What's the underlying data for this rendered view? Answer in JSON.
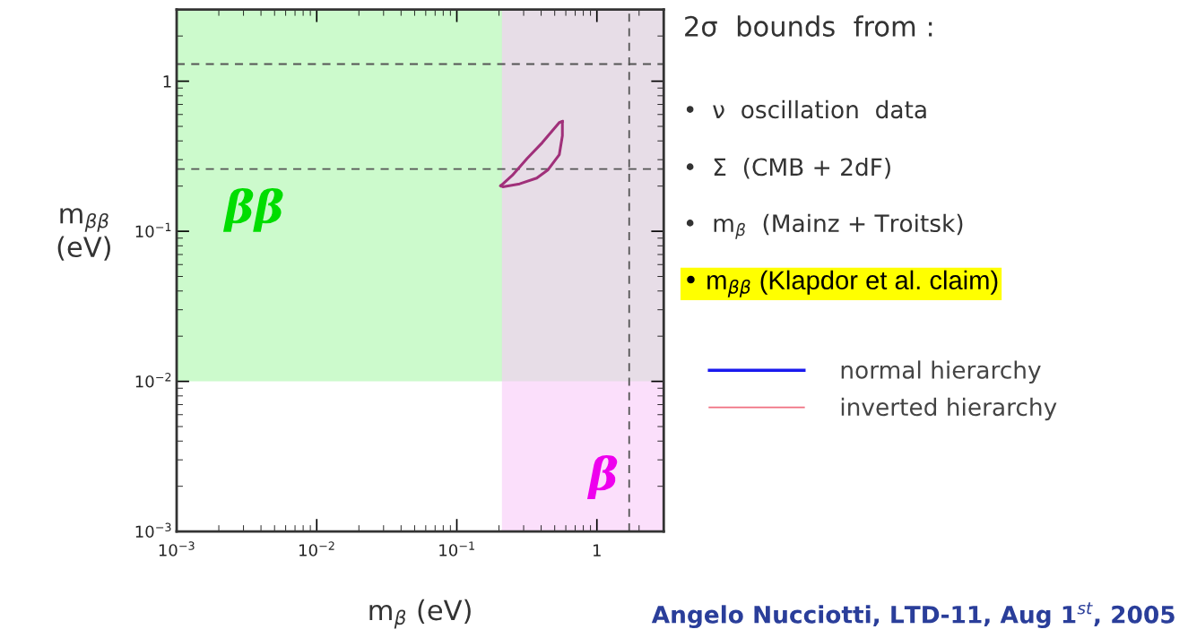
{
  "chart_data": {
    "type": "line",
    "xlabel": "m$_{β}$ (eV)",
    "ylabel": "m$_{ββ}$\n(eV)",
    "log": "xy",
    "xlim": [
      0.001,
      3
    ],
    "ylim": [
      0.001,
      3
    ],
    "xticks": [
      {
        "value": 0.001,
        "label": "10$^{−3}$"
      },
      {
        "value": 0.01,
        "label": "10$^{−2}$"
      },
      {
        "value": 0.1,
        "label": "10$^{−1}$"
      },
      1
    ],
    "yticks": [
      {
        "value": 0.001,
        "label": "10$^{−3}$"
      },
      {
        "value": 0.01,
        "label": "10$^{−2}$"
      },
      {
        "value": 0.1,
        "label": "10$^{−1}$"
      },
      1
    ],
    "bands": [
      {
        "axis": "y",
        "from": 0.01,
        "to": 3,
        "label": "ββ",
        "color": "#ccfacc"
      },
      {
        "axis": "x",
        "from": 0.21,
        "to": 3,
        "label": "β",
        "color": "#f9c9f9"
      }
    ],
    "ref_lines": [
      {
        "axis": "y",
        "value": 1.3,
        "label": null,
        "color": "#555555",
        "line_style": "dashed"
      },
      {
        "axis": "y",
        "value": 0.26,
        "label": null,
        "color": "#555555",
        "line_style": "dashed"
      },
      {
        "axis": "x",
        "value": 1.7,
        "label": null,
        "color": "#555555",
        "line_style": "dashed"
      }
    ],
    "series": [
      {
        "color": "#a0307a",
        "x": [
          0.206,
          0.249,
          0.318,
          0.408,
          0.539,
          0.567
        ],
        "values": [
          0.201,
          0.236,
          0.306,
          0.39,
          0.53,
          0.539
        ]
      },
      {
        "color": "#a0307a",
        "x": [
          0.206,
          0.213,
          0.281,
          0.372,
          0.448,
          0.539,
          0.567,
          0.567
        ],
        "values": [
          0.201,
          0.198,
          0.207,
          0.226,
          0.257,
          0.324,
          0.433,
          0.539
        ]
      },
      {
        "name": "normal hierarchy",
        "color": "#1a1aee"
      },
      {
        "name": "inverted hierarchy",
        "color": "#f07080"
      }
    ],
    "legend": "right",
    "grid": false,
    "annotations": [
      "2σ  bounds  from :",
      "•  ν  oscillation  data",
      "•  Σ  (CMB + 2dF)",
      "•  m$_{β}$  (Mainz + Troitsk)",
      "• m$_{ββ}$ (Klapdor et al. claim)",
      "Angelo Nucciotti, LTD-11, Aug 1$^{st}$, 2005"
    ]
  }
}
